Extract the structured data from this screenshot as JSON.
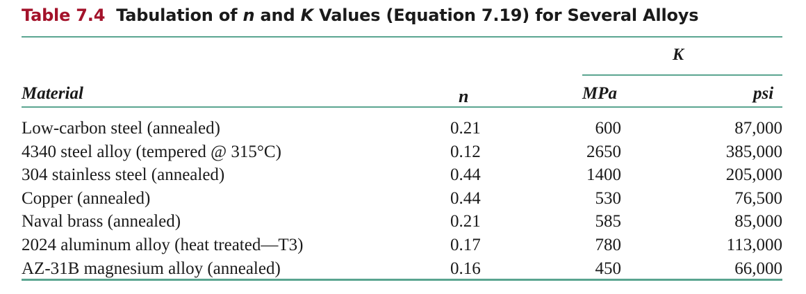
{
  "caption": {
    "table_number": "Table 7.4",
    "title_part1": "Tabulation of ",
    "title_n": "n",
    "title_part2": " and ",
    "title_k": "K",
    "title_part3": " Values (Equation 7.19) for Several Alloys"
  },
  "headers": {
    "group_k": "K",
    "material": "Material",
    "n": "n",
    "mpa": "MPa",
    "psi": "psi"
  },
  "rows": [
    {
      "material": "Low-carbon steel (annealed)",
      "n": "0.21",
      "mpa": "600",
      "psi": "87,000"
    },
    {
      "material": "4340 steel alloy (tempered @ 315°C)",
      "n": "0.12",
      "mpa": "2650",
      "psi": "385,000"
    },
    {
      "material": "304 stainless steel (annealed)",
      "n": "0.44",
      "mpa": "1400",
      "psi": "205,000"
    },
    {
      "material": "Copper (annealed)",
      "n": "0.44",
      "mpa": "530",
      "psi": "76,500"
    },
    {
      "material": "Naval brass (annealed)",
      "n": "0.21",
      "mpa": "585",
      "psi": "85,000"
    },
    {
      "material": "2024 aluminum alloy (heat treated—T3)",
      "n": "0.17",
      "mpa": "780",
      "psi": "113,000"
    },
    {
      "material": "AZ-31B magnesium alloy (annealed)",
      "n": "0.16",
      "mpa": "450",
      "psi": "66,000"
    }
  ],
  "colors": {
    "table_number": "#a3122a",
    "rule": "#5aa590",
    "text": "#1a1a1a"
  }
}
